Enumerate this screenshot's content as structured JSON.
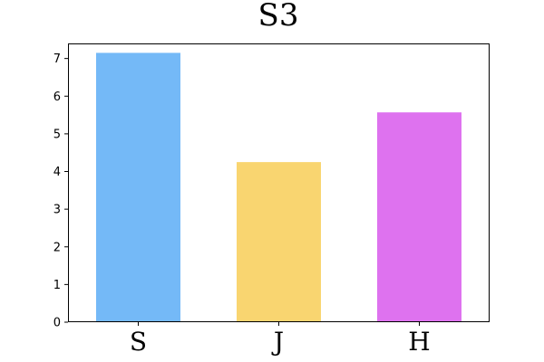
{
  "chart_data": {
    "type": "bar",
    "title": "S3",
    "xlabel": "",
    "ylabel": "",
    "categories": [
      "S",
      "J",
      "H"
    ],
    "values": [
      7.15,
      4.25,
      5.57
    ],
    "colors": [
      "#74b9f7",
      "#f9d570",
      "#de72ef"
    ],
    "ylim": [
      0,
      7.4
    ],
    "yticks": [
      0,
      1,
      2,
      3,
      4,
      5,
      6,
      7
    ],
    "grid": false,
    "legend": "none"
  }
}
